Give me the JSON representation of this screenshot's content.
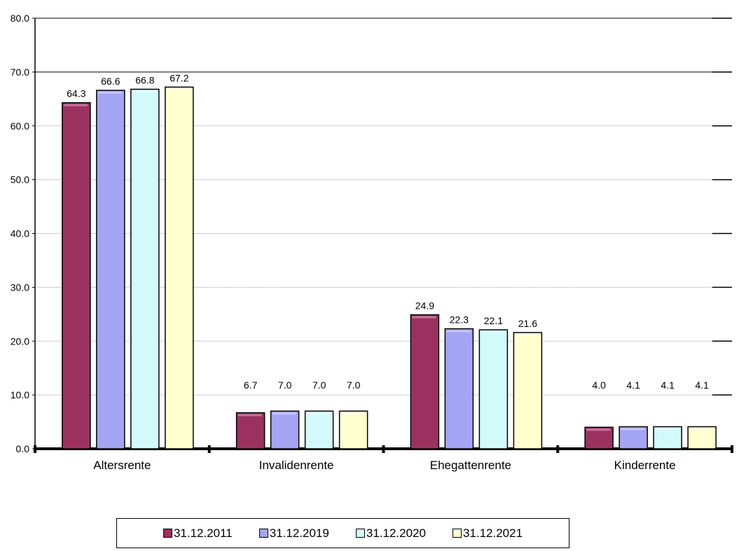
{
  "chart_data": {
    "type": "bar",
    "categories": [
      "Altersrente",
      "Invalidenrente",
      "Ehegattenrente",
      "Kinderrente"
    ],
    "series": [
      {
        "name": "31.12.2011",
        "color": "#9c3160",
        "values": [
          64.3,
          6.7,
          24.9,
          4.0
        ],
        "labels": [
          "64.3",
          "6.7",
          "24.9",
          "4.0"
        ]
      },
      {
        "name": "31.12.2019",
        "color": "#a4a4f4",
        "values": [
          66.6,
          7.0,
          22.3,
          4.1
        ],
        "labels": [
          "66.6",
          "7.0",
          "22.3",
          "4.1"
        ]
      },
      {
        "name": "31.12.2020",
        "color": "#d2fafa",
        "values": [
          66.8,
          7.0,
          22.1,
          4.1
        ],
        "labels": [
          "66.8",
          "7.0",
          "22.1",
          "4.1"
        ]
      },
      {
        "name": "31.12.2021",
        "color": "#ffffcf",
        "values": [
          67.2,
          7.0,
          21.6,
          4.1
        ],
        "labels": [
          "67.2",
          "7.0",
          "21.6",
          "4.1"
        ]
      }
    ],
    "ylim": [
      0,
      80
    ],
    "yticks": [
      "0.0",
      "10.0",
      "20.0",
      "30.0",
      "40.0",
      "50.0",
      "60.0",
      "70.0",
      "80.0"
    ],
    "grid": true,
    "legend_position": "bottom",
    "title": "",
    "xlabel": "",
    "ylabel": ""
  }
}
